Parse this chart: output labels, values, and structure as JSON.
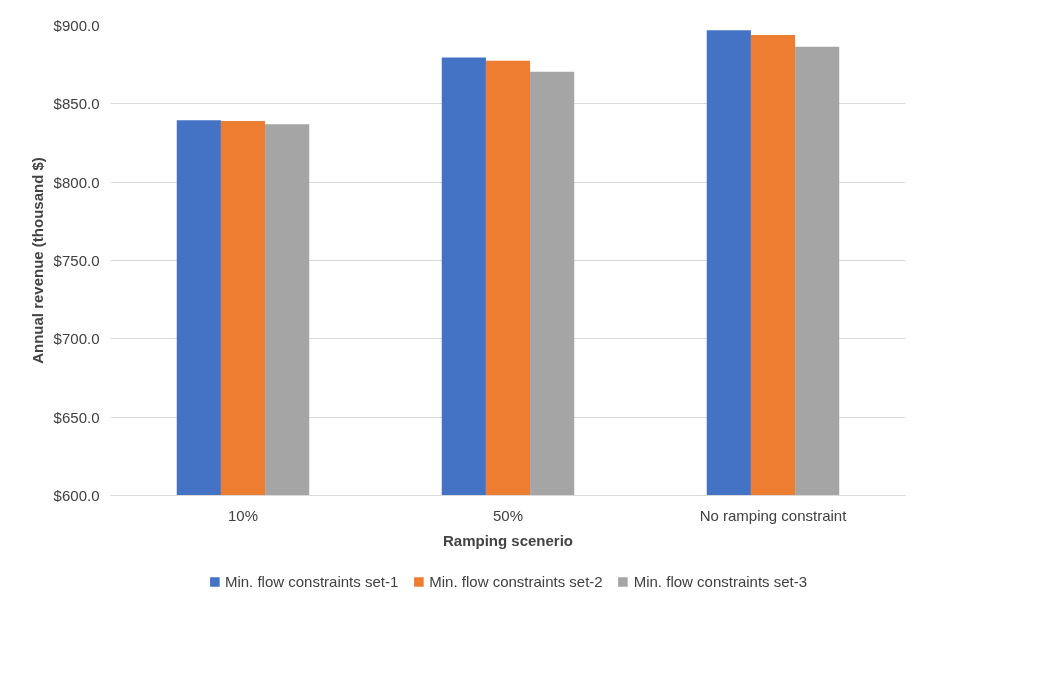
{
  "chart_data": {
    "type": "bar",
    "xlabel": "Ramping scenerio",
    "ylabel": "Annual revenue (thousand $)",
    "categories": [
      "10%",
      "50%",
      "No ramping constraint"
    ],
    "series": [
      {
        "name": "Min. flow constraints set-1",
        "color": "#4472c4",
        "values": [
          839.5,
          879.5,
          897
        ]
      },
      {
        "name": "Min. flow constraints set-2",
        "color": "#ed7d31",
        "values": [
          839,
          877.5,
          894
        ]
      },
      {
        "name": "Min. flow constraints set-3",
        "color": "#a5a5a5",
        "values": [
          837,
          870.5,
          886.5
        ]
      }
    ],
    "ylim": [
      600,
      900
    ],
    "yticks": [
      {
        "value": 600,
        "label": "$600.0"
      },
      {
        "value": 650,
        "label": "$650.0"
      },
      {
        "value": 700,
        "label": "$700.0"
      },
      {
        "value": 750,
        "label": "$750.0"
      },
      {
        "value": 800,
        "label": "$800.0"
      },
      {
        "value": 850,
        "label": "$850.0"
      },
      {
        "value": 900,
        "label": "$900.0"
      }
    ],
    "grid": "y",
    "legend": "bottom"
  }
}
